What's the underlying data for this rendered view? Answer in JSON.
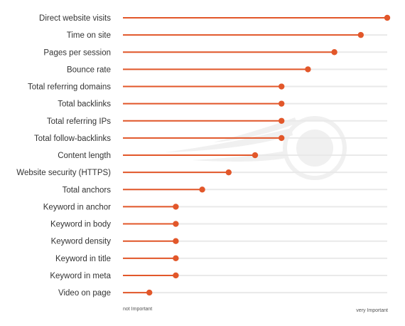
{
  "chart_data": {
    "type": "lollipop",
    "orientation": "horizontal",
    "categories": [
      "Direct website visits",
      "Time on site",
      "Pages per session",
      "Bounce rate",
      "Total referring domains",
      "Total backlinks",
      "Total referring IPs",
      "Total follow-backlinks",
      "Content length",
      "Website security (HTTPS)",
      "Total anchors",
      "Keyword in anchor",
      "Keyword in body",
      "Keyword density",
      "Keyword in title",
      "Keyword in meta",
      "Video on page"
    ],
    "values": [
      1.0,
      0.9,
      0.8,
      0.7,
      0.6,
      0.6,
      0.6,
      0.6,
      0.5,
      0.4,
      0.3,
      0.2,
      0.2,
      0.2,
      0.2,
      0.2,
      0.1
    ],
    "xlim": [
      0,
      1
    ],
    "x_axis_end_labels": {
      "min": "not Important",
      "max": "very Important"
    },
    "grid": false,
    "legend": "none"
  },
  "colors": {
    "accent": "#e2572a",
    "track": "#e9e9e9",
    "label": "#333333",
    "watermark": "#f2f2f2"
  },
  "watermark_icon": "semrush-fireball-icon"
}
